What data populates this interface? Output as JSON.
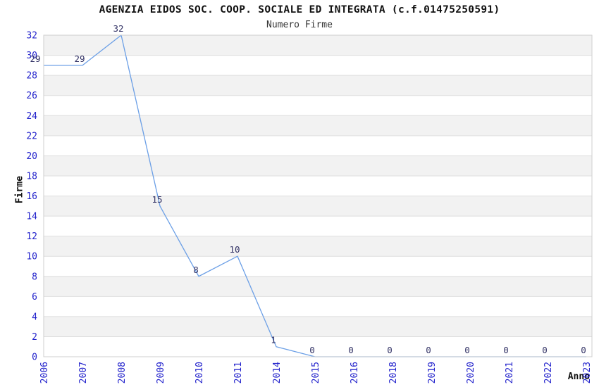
{
  "chart_data": {
    "type": "line",
    "title": "AGENZIA EIDOS SOC. COOP. SOCIALE ED INTEGRATA (c.f.01475250591)",
    "subtitle": "Numero Firme",
    "xlabel": "Anno",
    "ylabel": "Firme",
    "categories": [
      "2006",
      "2007",
      "2008",
      "2009",
      "2010",
      "2011",
      "2014",
      "2015",
      "2016",
      "2018",
      "2019",
      "2020",
      "2021",
      "2022",
      "2023"
    ],
    "values": [
      29,
      29,
      32,
      15,
      8,
      10,
      1,
      0,
      0,
      0,
      0,
      0,
      0,
      0,
      0
    ],
    "series": [
      {
        "name": "Numero Firme",
        "values": [
          29,
          29,
          32,
          15,
          8,
          10,
          1,
          0,
          0,
          0,
          0,
          0,
          0,
          0,
          0
        ]
      }
    ],
    "point_labels_shown": true,
    "ylim": [
      0,
      32
    ],
    "ytick_step": 2,
    "x_tick_rotation": -90,
    "legend": "none",
    "grid": "horizontal gridlines every 2 units with alternating gray/white background bands",
    "colors": {
      "line": "#6b9fe6",
      "tick_label": "#2323cc",
      "data_label": "#333366",
      "stripe": "#f2f2f2",
      "gridline": "#dedede",
      "plot_border": "#cfcfcf",
      "text": "#111111",
      "background": "#ffffff"
    }
  }
}
